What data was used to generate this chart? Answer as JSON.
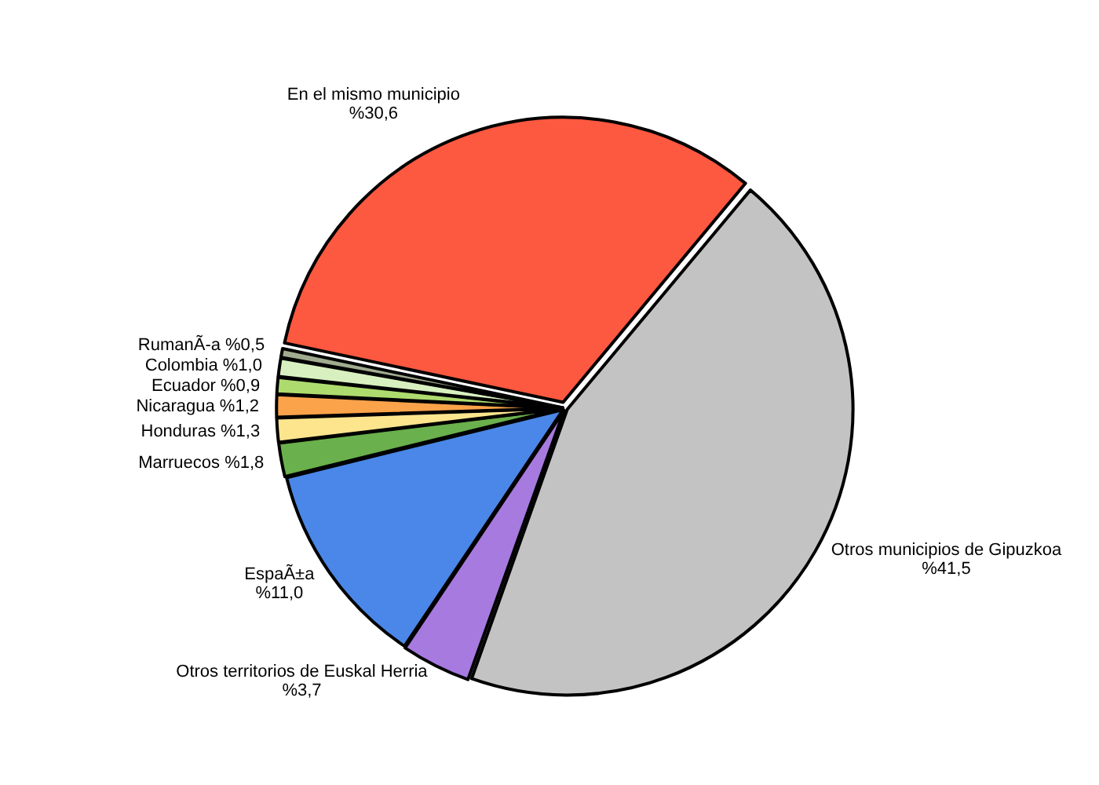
{
  "chart_data": {
    "type": "pie",
    "categories": [
      "En el mismo municipio",
      "Otros municipios de Gipuzkoa",
      "Otros territorios de Euskal Herria",
      "EspaÃ±a",
      "Marruecos",
      "Honduras",
      "Nicaragua",
      "Ecuador",
      "Colombia",
      "RumanÃ-a"
    ],
    "values": [
      30.6,
      41.5,
      3.7,
      11.0,
      1.8,
      1.3,
      1.2,
      0.9,
      1.0,
      0.5
    ],
    "colors": [
      "#fd5840",
      "#c3c3c3",
      "#a77ae0",
      "#4a87e8",
      "#6ab04c",
      "#fde58e",
      "#fba34a",
      "#aedb6e",
      "#d8f0c0",
      "#a0ab90"
    ],
    "value_labels": [
      "%30,6",
      "%41,5",
      "%3,7",
      "%11,0",
      "%1,8",
      "%1,3",
      "%1,2",
      "%0,9",
      "%1,0",
      "%0,5"
    ],
    "legend": false
  }
}
